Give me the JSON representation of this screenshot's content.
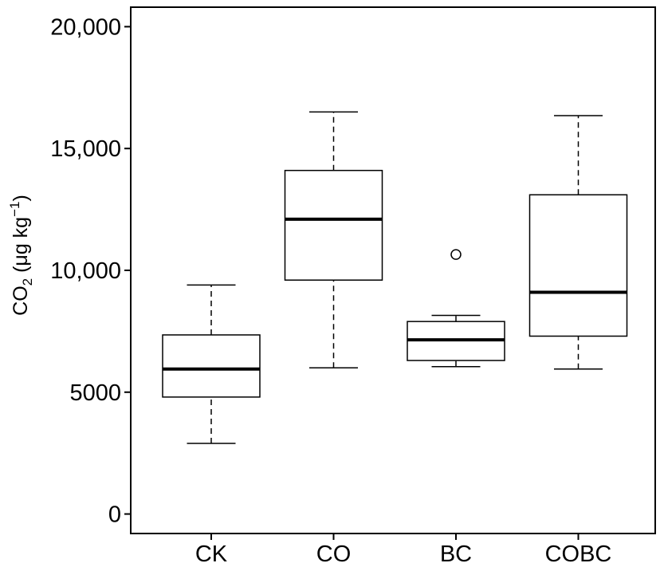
{
  "chart_data": {
    "type": "boxplot",
    "title": "",
    "xlabel": "",
    "ylabel": {
      "main": "CO",
      "sub": "2",
      "unit_pre": " (μg kg",
      "sup": "−1",
      "unit_post": ")"
    },
    "ylim": [
      -800,
      20800
    ],
    "yticks": [
      0,
      5000,
      10000,
      15000,
      20000
    ],
    "ytick_labels": [
      "0",
      "5000",
      "10,000",
      "15,000",
      "20,000"
    ],
    "grid": false,
    "categories": [
      "CK",
      "CO",
      "BC",
      "COBC"
    ],
    "boxes": [
      {
        "name": "CK",
        "whisker_low": 2900,
        "q1": 4800,
        "median": 5950,
        "q3": 7350,
        "whisker_high": 9400,
        "outliers": []
      },
      {
        "name": "CO",
        "whisker_low": 6000,
        "q1": 9600,
        "median": 12100,
        "q3": 14100,
        "whisker_high": 16500,
        "outliers": []
      },
      {
        "name": "BC",
        "whisker_low": 6050,
        "q1": 6300,
        "median": 7150,
        "q3": 7900,
        "whisker_high": 8150,
        "outliers": [
          10650
        ]
      },
      {
        "name": "COBC",
        "whisker_low": 5950,
        "q1": 7300,
        "median": 9100,
        "q3": 13100,
        "whisker_high": 16350,
        "outliers": []
      }
    ],
    "colors": {
      "box": "#ffffff",
      "stroke": "#000000",
      "median": "#000000"
    }
  }
}
